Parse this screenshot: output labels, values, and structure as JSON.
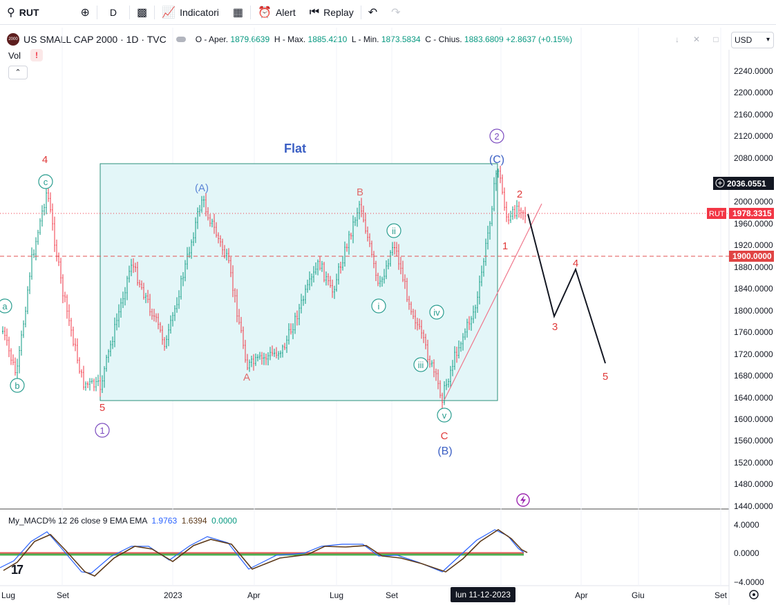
{
  "toolbar": {
    "symbol": "RUT",
    "interval": "D",
    "indicators_label": "Indicatori",
    "alert_label": "Alert",
    "replay_label": "Replay"
  },
  "legend": {
    "logo_text": "2000",
    "title": "US SMALL CAP 2000 · 1D · TVC",
    "open_label": "O - Aper.",
    "open": "1879.6639",
    "high_label": "H - Max.",
    "high": "1885.4210",
    "low_label": "L - Min.",
    "low": "1873.5834",
    "close_label": "C - Chius.",
    "close": "1883.6809",
    "change": "+2.8637 (+0.15%)",
    "vol_label": "Vol",
    "vol_warning": "!"
  },
  "currency": "USD",
  "price_axis": [
    "2240.0000",
    "2200.0000",
    "2160.0000",
    "2120.0000",
    "2080.0000",
    "2040.0000",
    "2000.0000",
    "1960.0000",
    "1920.0000",
    "1880.0000",
    "1840.0000",
    "1800.0000",
    "1760.0000",
    "1720.0000",
    "1680.0000",
    "1640.0000",
    "1600.0000",
    "1560.0000",
    "1520.0000",
    "1480.0000",
    "1440.0000"
  ],
  "price_labels": {
    "crosshair": "2036.0551",
    "symbol_tag": "RUT",
    "last": "1978.3315",
    "level": "1900.0000"
  },
  "time_axis": [
    "Lug",
    "Set",
    "2023",
    "Apr",
    "Lug",
    "Set",
    "Apr",
    "Giu",
    "Set"
  ],
  "date_badge": "lun 11-12-2023",
  "macd": {
    "legend_name": "My_MACD% 12 26 close 9 EMA EMA",
    "v1": "1.9763",
    "v2": "1.6394",
    "v3": "0.0000",
    "axis": [
      "4.0000",
      "0.0000",
      "−4.0000"
    ]
  },
  "waves": {
    "flat": "Flat",
    "w4": "4",
    "c_small": "c",
    "a_small": "a",
    "b_small": "b",
    "w5": "5",
    "w1": "1",
    "A_par": "(A)",
    "B_red": "B",
    "A_red": "A",
    "C_red": "C",
    "B_par": "(B)",
    "C_par": "(C)",
    "w2": "2",
    "ii": "ii",
    "i": "i",
    "iii": "iii",
    "iv": "iv",
    "v": "v",
    "f1": "1",
    "f2": "2",
    "f3": "3",
    "f4": "4",
    "f5": "5"
  },
  "colors": {
    "up": "#089981",
    "down": "#f23645",
    "box_fill": "#e6f7f8",
    "box_border": "#2a8f7a",
    "wave_red": "#e03a3a",
    "wave_blue": "#3b5fc4",
    "wave_purple": "#7b4bbf",
    "wave_teal": "#2a9d8f",
    "macd_blue": "#2962ff",
    "signal": "#5d3a1a"
  }
}
